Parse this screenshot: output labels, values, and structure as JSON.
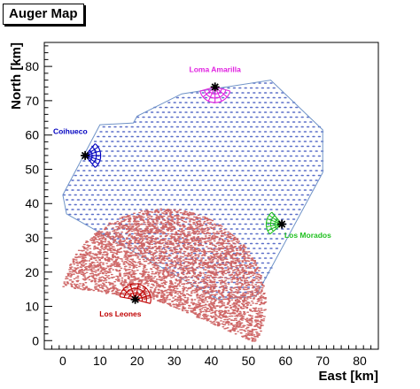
{
  "chart_data": {
    "type": "scatter",
    "title": "Auger Map",
    "xlabel": "East [km]",
    "ylabel": "North [km]",
    "xlim": [
      -5,
      85
    ],
    "ylim": [
      -2.5,
      87
    ],
    "xticks": [
      0,
      10,
      20,
      30,
      40,
      50,
      60,
      70,
      80
    ],
    "yticks": [
      0,
      10,
      20,
      30,
      40,
      50,
      60,
      70,
      80
    ],
    "grid": false,
    "array_outline": [
      [
        0,
        42.5
      ],
      [
        10,
        63
      ],
      [
        19,
        63.5
      ],
      [
        20,
        65.5
      ],
      [
        32,
        72
      ],
      [
        56,
        76
      ],
      [
        70,
        61.5
      ],
      [
        70,
        49
      ],
      [
        52,
        13
      ],
      [
        42,
        12
      ],
      [
        1,
        37
      ]
    ],
    "stations": [
      {
        "name": "Loma Amarilla",
        "x": 41,
        "y": 74,
        "color": "#e020e0",
        "arc": [
          195,
          345
        ],
        "labelX": 41,
        "labelY": 78.3,
        "anchor": "middle"
      },
      {
        "name": "Coihueco",
        "x": 6,
        "y": 54,
        "color": "#0000c0",
        "arc": [
          -50,
          50
        ],
        "labelX": 2,
        "labelY": 60.3,
        "anchor": "middle"
      },
      {
        "name": "Los Morados",
        "x": 59,
        "y": 34,
        "color": "#20c020",
        "arc": [
          130,
          220
        ],
        "labelX": 66,
        "labelY": 30,
        "anchor": "middle"
      },
      {
        "name": "Los Leones",
        "x": 19.5,
        "y": 12,
        "color": "#c00000",
        "arc": [
          -15,
          170
        ],
        "labelX": 15.5,
        "labelY": 7,
        "anchor": "middle"
      }
    ],
    "event_region": {
      "cx": 27,
      "cy": 11,
      "r": 27.5,
      "startDeg": -25,
      "endDeg": 170,
      "color": "#cc6060"
    }
  }
}
